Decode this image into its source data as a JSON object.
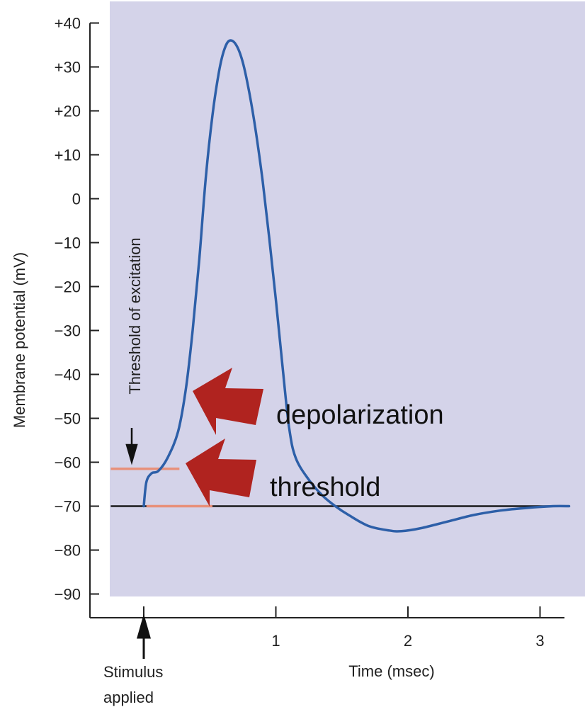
{
  "chart_data": {
    "type": "line",
    "title": "",
    "xlabel": "Time (msec)",
    "ylabel": "Membrane potential (mV)",
    "xlim": [
      -0.4,
      3.2
    ],
    "ylim": [
      -90,
      40
    ],
    "x_ticks": [
      {
        "value": 0,
        "label": ""
      },
      {
        "value": 1,
        "label": "1"
      },
      {
        "value": 2,
        "label": "2"
      },
      {
        "value": 3,
        "label": "3"
      }
    ],
    "y_ticks": [
      {
        "value": 40,
        "label": "+40"
      },
      {
        "value": 30,
        "label": "+30"
      },
      {
        "value": 20,
        "label": "+20"
      },
      {
        "value": 10,
        "label": "+10"
      },
      {
        "value": 0,
        "label": "0"
      },
      {
        "value": -10,
        "label": "−10"
      },
      {
        "value": -20,
        "label": "−20"
      },
      {
        "value": -30,
        "label": "−30"
      },
      {
        "value": -40,
        "label": "−40"
      },
      {
        "value": -50,
        "label": "−50"
      },
      {
        "value": -60,
        "label": "−60"
      },
      {
        "value": -70,
        "label": "−70"
      },
      {
        "value": -80,
        "label": "−80"
      },
      {
        "value": -90,
        "label": "−90"
      }
    ],
    "grid": false,
    "legend": "none",
    "series": [
      {
        "name": "",
        "color": "#2d5fa8",
        "points": [
          [
            0,
            -70
          ],
          [
            0.02,
            -64.5
          ],
          [
            0.06,
            -62.5
          ],
          [
            0.11,
            -62
          ],
          [
            0.18,
            -59
          ],
          [
            0.26,
            -53
          ],
          [
            0.32,
            -43
          ],
          [
            0.37,
            -30
          ],
          [
            0.42,
            -14
          ],
          [
            0.47,
            5
          ],
          [
            0.52,
            19
          ],
          [
            0.57,
            29
          ],
          [
            0.61,
            34
          ],
          [
            0.65,
            36
          ],
          [
            0.7,
            35
          ],
          [
            0.75,
            31
          ],
          [
            0.8,
            24
          ],
          [
            0.85,
            15
          ],
          [
            0.9,
            4
          ],
          [
            0.95,
            -9
          ],
          [
            1.0,
            -23
          ],
          [
            1.05,
            -38
          ],
          [
            1.1,
            -52
          ],
          [
            1.15,
            -59
          ],
          [
            1.25,
            -64
          ],
          [
            1.35,
            -67.5
          ],
          [
            1.45,
            -70
          ],
          [
            1.55,
            -72
          ],
          [
            1.7,
            -74.5
          ],
          [
            1.85,
            -75.5
          ],
          [
            1.95,
            -75.7
          ],
          [
            2.1,
            -75
          ],
          [
            2.3,
            -73.5
          ],
          [
            2.5,
            -72
          ],
          [
            2.7,
            -71
          ],
          [
            2.9,
            -70.4
          ],
          [
            3.1,
            -70
          ],
          [
            3.22,
            -70
          ]
        ]
      }
    ],
    "reference_lines": [
      {
        "kind": "resting",
        "y": -70,
        "x_from": -0.25,
        "x_to": 3.22,
        "color": "#1a1a1a"
      },
      {
        "kind": "threshold-at-start",
        "y": -61.5,
        "x_from": -0.25,
        "x_to": 0.27,
        "color": "#e8907a"
      },
      {
        "kind": "threshold-at-rest",
        "y": -70,
        "x_from": 0.02,
        "x_to": 0.52,
        "color": "#e8907a"
      }
    ],
    "annotations": {
      "threshold_of_excitation": "Threshold of excitation",
      "depolarization": "depolarization",
      "threshold": "threshold",
      "stimulus_line1": "Stimulus",
      "stimulus_line2": "applied"
    },
    "colors": {
      "plot_background": "#d4d3e9",
      "curve": "#2d5fa8",
      "arrow": "#b0231f",
      "threshold_line": "#e8907a",
      "axis": "#222222"
    }
  }
}
